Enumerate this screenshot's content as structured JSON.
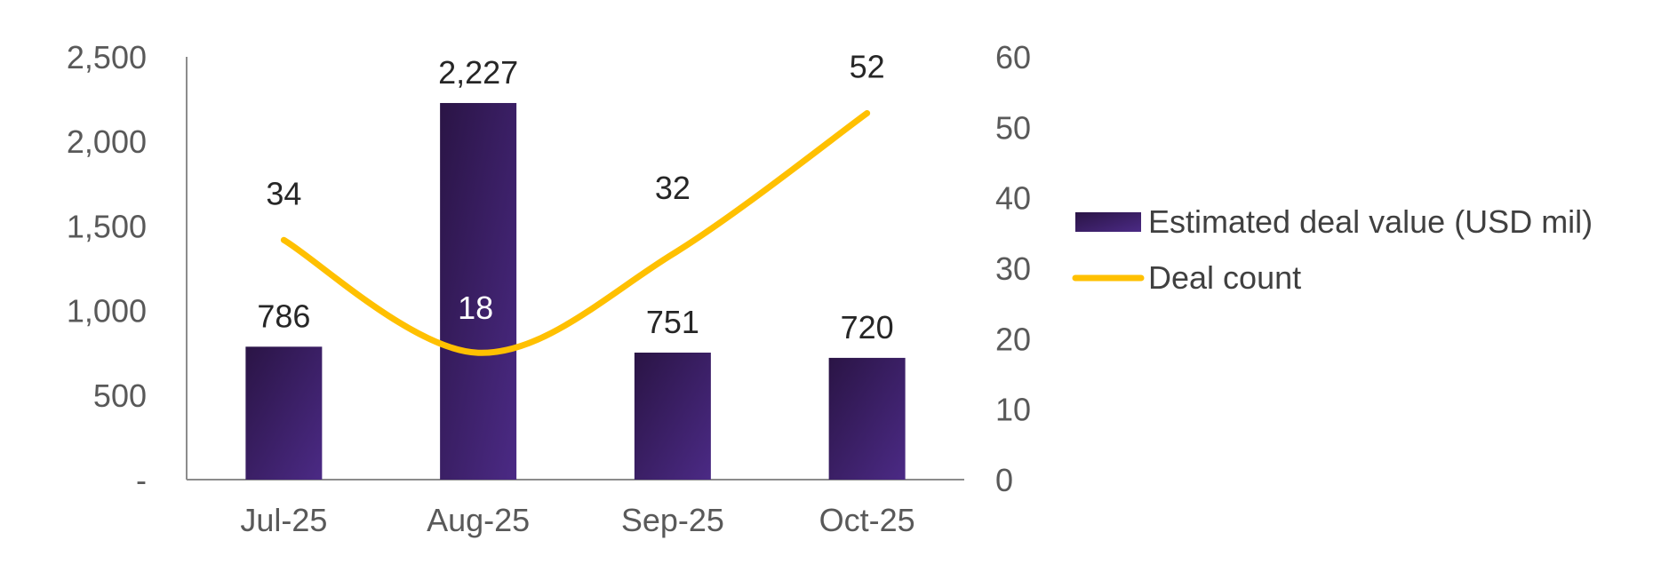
{
  "chart_data": {
    "type": "bar+line",
    "categories": [
      "Jul-25",
      "Aug-25",
      "Sep-25",
      "Oct-25"
    ],
    "series": [
      {
        "name": "Estimated deal value (USD mil)",
        "type": "bar",
        "axis": "left",
        "values": [
          786,
          2227,
          751,
          720
        ],
        "labels": [
          "786",
          "2,227",
          "751",
          "720"
        ],
        "color_dark": "#2a1445",
        "color_light": "#4b2a85"
      },
      {
        "name": "Deal count",
        "type": "line",
        "axis": "right",
        "smooth": true,
        "values": [
          34,
          18,
          32,
          52
        ],
        "labels": [
          "34",
          "18",
          "32",
          "52"
        ],
        "color": "#ffc000"
      }
    ],
    "y_left": {
      "ylim": [
        0,
        2500
      ],
      "ticks": [
        "-",
        "500",
        "1,000",
        "1,500",
        "2,000",
        "2,500"
      ]
    },
    "y_right": {
      "ylim": [
        0,
        60
      ],
      "ticks": [
        "0",
        "10",
        "20",
        "30",
        "40",
        "50",
        "60"
      ]
    },
    "title": "",
    "xlabel": "",
    "ylabel": "",
    "grid": false,
    "legend": "right"
  }
}
